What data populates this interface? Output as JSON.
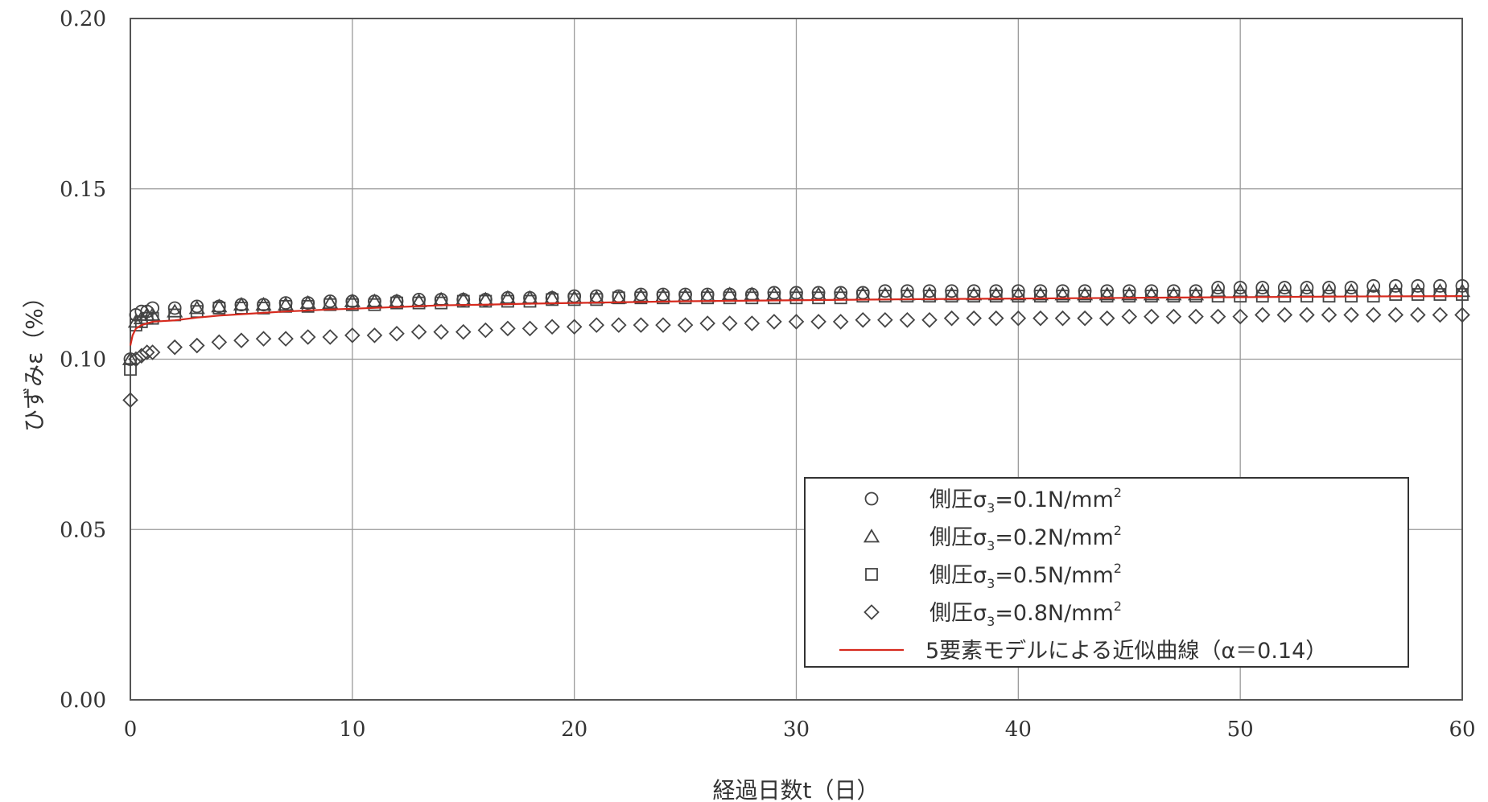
{
  "chart_data": {
    "type": "scatter",
    "xlabel": "経過日数t（日）",
    "ylabel": "ひずみε（%）",
    "xlim": [
      0,
      60
    ],
    "ylim": [
      0.0,
      0.2
    ],
    "x_ticks": [
      "0",
      "10",
      "20",
      "30",
      "40",
      "50",
      "60"
    ],
    "y_ticks": [
      "0.00",
      "0.05",
      "0.10",
      "0.15",
      "0.20"
    ],
    "grid": true,
    "legend_position": "bottom-right",
    "series": [
      {
        "name": "側圧σ3=0.1N/mm2",
        "label_main": "側圧σ",
        "label_sub": "3",
        "label_rest": "=0.1N/mm",
        "label_sup": "2",
        "marker": "circle",
        "x": [
          0,
          0.25,
          0.5,
          0.75,
          1,
          2,
          3,
          4,
          5,
          6,
          7,
          8,
          9,
          10,
          11,
          12,
          13,
          14,
          15,
          16,
          17,
          18,
          19,
          20,
          21,
          22,
          23,
          24,
          25,
          26,
          27,
          28,
          29,
          30,
          31,
          32,
          33,
          34,
          35,
          36,
          37,
          38,
          39,
          40,
          41,
          42,
          43,
          44,
          45,
          46,
          47,
          48,
          49,
          50,
          51,
          52,
          53,
          54,
          55,
          56,
          57,
          58,
          59,
          60
        ],
        "y": [
          0.1,
          0.113,
          0.114,
          0.114,
          0.115,
          0.115,
          0.1155,
          0.1155,
          0.116,
          0.116,
          0.1165,
          0.1165,
          0.117,
          0.117,
          0.117,
          0.117,
          0.1175,
          0.1175,
          0.1175,
          0.1175,
          0.118,
          0.118,
          0.118,
          0.1185,
          0.1185,
          0.1185,
          0.119,
          0.119,
          0.119,
          0.119,
          0.119,
          0.119,
          0.1195,
          0.1195,
          0.1195,
          0.1195,
          0.1195,
          0.12,
          0.12,
          0.12,
          0.12,
          0.12,
          0.12,
          0.12,
          0.12,
          0.12,
          0.12,
          0.12,
          0.12,
          0.12,
          0.12,
          0.12,
          0.121,
          0.121,
          0.121,
          0.121,
          0.121,
          0.121,
          0.121,
          0.1215,
          0.1215,
          0.1215,
          0.1215,
          0.1215
        ]
      },
      {
        "name": "側圧σ3=0.2N/mm2",
        "label_main": "側圧σ",
        "label_sub": "3",
        "label_rest": "=0.2N/mm",
        "label_sup": "2",
        "marker": "triangle",
        "x": [
          0,
          0.25,
          0.5,
          0.75,
          1,
          2,
          3,
          4,
          5,
          6,
          7,
          8,
          9,
          10,
          11,
          12,
          13,
          14,
          15,
          16,
          17,
          18,
          19,
          20,
          21,
          22,
          23,
          24,
          25,
          26,
          27,
          28,
          29,
          30,
          31,
          32,
          33,
          34,
          35,
          36,
          37,
          38,
          39,
          40,
          41,
          42,
          43,
          44,
          45,
          46,
          47,
          48,
          49,
          50,
          51,
          52,
          53,
          54,
          55,
          56,
          57,
          58,
          59,
          60
        ],
        "y": [
          0.1,
          0.111,
          0.112,
          0.113,
          0.113,
          0.114,
          0.115,
          0.1155,
          0.116,
          0.116,
          0.116,
          0.1165,
          0.1165,
          0.117,
          0.117,
          0.117,
          0.117,
          0.1175,
          0.1175,
          0.1175,
          0.118,
          0.118,
          0.118,
          0.118,
          0.118,
          0.118,
          0.1185,
          0.1185,
          0.1185,
          0.1185,
          0.119,
          0.119,
          0.119,
          0.119,
          0.119,
          0.119,
          0.119,
          0.119,
          0.119,
          0.119,
          0.119,
          0.119,
          0.119,
          0.119,
          0.119,
          0.119,
          0.119,
          0.119,
          0.119,
          0.119,
          0.119,
          0.119,
          0.12,
          0.12,
          0.12,
          0.12,
          0.12,
          0.12,
          0.12,
          0.12,
          0.12,
          0.12,
          0.12,
          0.12
        ]
      },
      {
        "name": "側圧σ3=0.5N/mm2",
        "label_main": "側圧σ",
        "label_sub": "3",
        "label_rest": "=0.5N/mm",
        "label_sup": "2",
        "marker": "square",
        "x": [
          0,
          0.25,
          0.5,
          0.75,
          1,
          2,
          3,
          4,
          5,
          6,
          7,
          8,
          9,
          10,
          11,
          12,
          13,
          14,
          15,
          16,
          17,
          18,
          19,
          20,
          21,
          22,
          23,
          24,
          25,
          26,
          27,
          28,
          29,
          30,
          31,
          32,
          33,
          34,
          35,
          36,
          37,
          38,
          39,
          40,
          41,
          42,
          43,
          44,
          45,
          46,
          47,
          48,
          49,
          50,
          51,
          52,
          53,
          54,
          55,
          56,
          57,
          58,
          59,
          60
        ],
        "y": [
          0.097,
          0.11,
          0.111,
          0.112,
          0.112,
          0.113,
          0.114,
          0.115,
          0.115,
          0.115,
          0.1155,
          0.1155,
          0.116,
          0.116,
          0.116,
          0.1165,
          0.1165,
          0.1165,
          0.117,
          0.117,
          0.117,
          0.117,
          0.1175,
          0.1175,
          0.1175,
          0.118,
          0.118,
          0.118,
          0.118,
          0.118,
          0.118,
          0.118,
          0.118,
          0.118,
          0.118,
          0.118,
          0.1185,
          0.1185,
          0.1185,
          0.1185,
          0.1185,
          0.1185,
          0.1185,
          0.1185,
          0.1185,
          0.1185,
          0.1185,
          0.1185,
          0.1185,
          0.1185,
          0.1185,
          0.1185,
          0.1185,
          0.1185,
          0.1185,
          0.1185,
          0.1185,
          0.1185,
          0.1185,
          0.1185,
          0.119,
          0.119,
          0.119,
          0.119
        ]
      },
      {
        "name": "側圧σ3=0.8N/mm2",
        "label_main": "側圧σ",
        "label_sub": "3",
        "label_rest": "=0.8N/mm",
        "label_sup": "2",
        "marker": "diamond",
        "x": [
          0,
          0.25,
          0.5,
          0.75,
          1,
          2,
          3,
          4,
          5,
          6,
          7,
          8,
          9,
          10,
          11,
          12,
          13,
          14,
          15,
          16,
          17,
          18,
          19,
          20,
          21,
          22,
          23,
          24,
          25,
          26,
          27,
          28,
          29,
          30,
          31,
          32,
          33,
          34,
          35,
          36,
          37,
          38,
          39,
          40,
          41,
          42,
          43,
          44,
          45,
          46,
          47,
          48,
          49,
          50,
          51,
          52,
          53,
          54,
          55,
          56,
          57,
          58,
          59,
          60
        ],
        "y": [
          0.088,
          0.1,
          0.101,
          0.102,
          0.102,
          0.1035,
          0.104,
          0.105,
          0.1055,
          0.106,
          0.106,
          0.1065,
          0.1065,
          0.107,
          0.107,
          0.1075,
          0.108,
          0.108,
          0.108,
          0.1085,
          0.109,
          0.109,
          0.1095,
          0.1095,
          0.11,
          0.11,
          0.11,
          0.11,
          0.11,
          0.1105,
          0.1105,
          0.1105,
          0.111,
          0.111,
          0.111,
          0.111,
          0.1115,
          0.1115,
          0.1115,
          0.1115,
          0.112,
          0.112,
          0.112,
          0.112,
          0.112,
          0.112,
          0.112,
          0.112,
          0.1125,
          0.1125,
          0.1125,
          0.1125,
          0.1125,
          0.1125,
          0.113,
          0.113,
          0.113,
          0.113,
          0.113,
          0.113,
          0.113,
          0.113,
          0.113,
          0.113
        ]
      },
      {
        "name": "5要素モデルによる近似曲線（α＝0.14）",
        "marker": "line",
        "color": "#d62a1e",
        "x": [
          0,
          0.1,
          0.25,
          0.5,
          0.75,
          1,
          1.5,
          2,
          3,
          4,
          5,
          6,
          7,
          8,
          9,
          10,
          12,
          14,
          16,
          18,
          20,
          25,
          30,
          35,
          40,
          45,
          50,
          55,
          60
        ],
        "y": [
          0.104,
          0.107,
          0.109,
          0.11,
          0.1105,
          0.111,
          0.1112,
          0.1114,
          0.1122,
          0.1128,
          0.1132,
          0.1136,
          0.114,
          0.1143,
          0.1146,
          0.1148,
          0.1153,
          0.1158,
          0.116,
          0.1163,
          0.1165,
          0.117,
          0.1173,
          0.1176,
          0.1178,
          0.118,
          0.1182,
          0.1184,
          0.1185
        ]
      }
    ]
  }
}
